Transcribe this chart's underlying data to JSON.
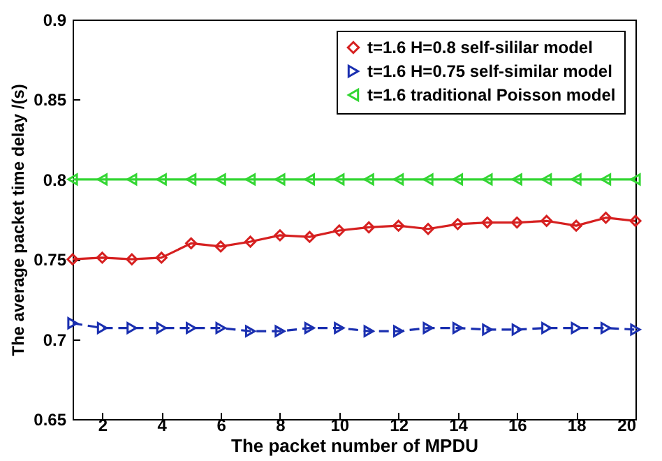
{
  "chart_data": {
    "type": "line",
    "xlabel": "The packet number of  MPDU",
    "ylabel": "The average packet time delay /(s)",
    "x": [
      1,
      2,
      3,
      4,
      5,
      6,
      7,
      8,
      9,
      10,
      11,
      12,
      13,
      14,
      15,
      16,
      17,
      18,
      19,
      20
    ],
    "xlim": [
      1,
      20
    ],
    "xticks": [
      2,
      4,
      6,
      8,
      10,
      12,
      14,
      16,
      18,
      20
    ],
    "ylim": [
      0.65,
      0.9
    ],
    "yticks": [
      0.65,
      0.7,
      0.75,
      0.8,
      0.85,
      0.9
    ],
    "grid": false,
    "legend": "top right",
    "series": [
      {
        "name": "t=1.6 H=0.8 self-sililar model",
        "color": "#d62020",
        "marker": "diamond",
        "line_style": "solid",
        "values": [
          0.75,
          0.751,
          0.75,
          0.751,
          0.76,
          0.758,
          0.761,
          0.765,
          0.764,
          0.768,
          0.77,
          0.771,
          0.769,
          0.772,
          0.773,
          0.773,
          0.774,
          0.771,
          0.776,
          0.774
        ]
      },
      {
        "name": "t=1.6 H=0.75 self-similar model",
        "color": "#1a2fb0",
        "marker": "triangle-right",
        "line_style": "dashed",
        "values": [
          0.71,
          0.707,
          0.707,
          0.707,
          0.707,
          0.707,
          0.705,
          0.705,
          0.707,
          0.707,
          0.705,
          0.705,
          0.707,
          0.707,
          0.706,
          0.706,
          0.707,
          0.707,
          0.707,
          0.706
        ]
      },
      {
        "name": "t=1.6 traditional Poisson model",
        "color": "#33d633",
        "marker": "triangle-left",
        "line_style": "solid",
        "values": [
          0.8,
          0.8,
          0.8,
          0.8,
          0.8,
          0.8,
          0.8,
          0.8,
          0.8,
          0.8,
          0.8,
          0.8,
          0.8,
          0.8,
          0.8,
          0.8,
          0.8,
          0.8,
          0.8,
          0.8
        ]
      }
    ]
  }
}
